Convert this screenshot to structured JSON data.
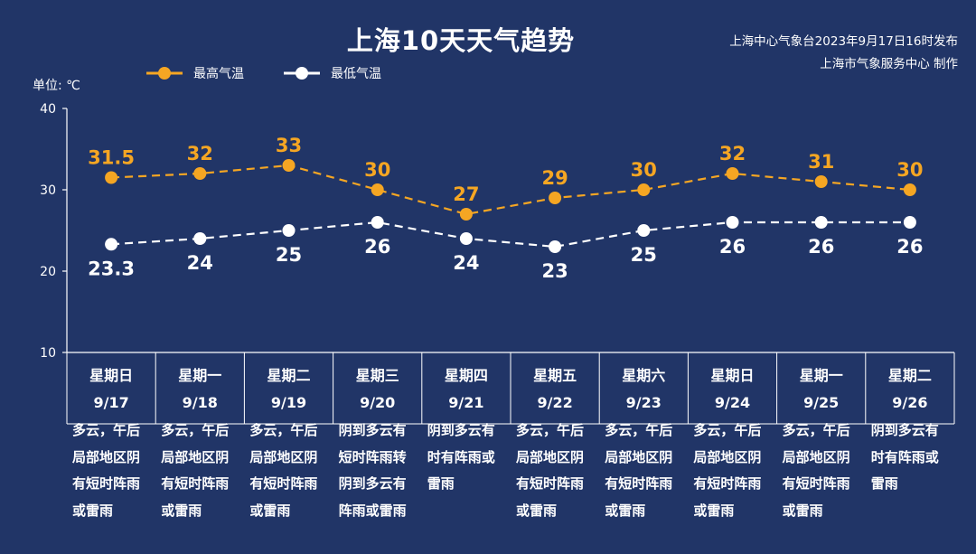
{
  "header": {
    "title": "上海10天天气趋势",
    "issuer_line1": "上海中心气象台2023年9月17日16时发布",
    "issuer_line2": "上海市气象服务中心 制作"
  },
  "legend": [
    {
      "label": "最高气温",
      "color": "#f5a623"
    },
    {
      "label": "最低气温",
      "color": "#ffffff"
    }
  ],
  "unit_label": "单位: ℃",
  "chart_data": {
    "type": "line",
    "ylim": [
      10,
      40
    ],
    "yticks": [
      10,
      20,
      30,
      40
    ],
    "series": [
      {
        "name": "最高气温",
        "color": "#f5a623",
        "values": [
          31.5,
          32,
          33,
          30,
          27,
          29,
          30,
          32,
          31,
          30
        ],
        "labels": [
          "31.5",
          "32",
          "33",
          "30",
          "27",
          "29",
          "30",
          "32",
          "31",
          "30"
        ]
      },
      {
        "name": "最低气温",
        "color": "#ffffff",
        "values": [
          23.3,
          24,
          25,
          26,
          24,
          23,
          25,
          26,
          26,
          26
        ],
        "labels": [
          "23.3",
          "24",
          "25",
          "26",
          "24",
          "23",
          "25",
          "26",
          "26",
          "26"
        ]
      }
    ],
    "days": [
      {
        "weekday": "星期日",
        "date": "9/17",
        "weather": [
          "多云，午后",
          "局部地区阴",
          "有短时阵雨",
          "或雷雨"
        ]
      },
      {
        "weekday": "星期一",
        "date": "9/18",
        "weather": [
          "多云，午后",
          "局部地区阴",
          "有短时阵雨",
          "或雷雨"
        ]
      },
      {
        "weekday": "星期二",
        "date": "9/19",
        "weather": [
          "多云，午后",
          "局部地区阴",
          "有短时阵雨",
          "或雷雨"
        ]
      },
      {
        "weekday": "星期三",
        "date": "9/20",
        "weather": [
          "阴到多云有",
          "短时阵雨转",
          "阴到多云有",
          "阵雨或雷雨"
        ]
      },
      {
        "weekday": "星期四",
        "date": "9/21",
        "weather": [
          "阴到多云有",
          "时有阵雨或",
          "雷雨"
        ]
      },
      {
        "weekday": "星期五",
        "date": "9/22",
        "weather": [
          "多云，午后",
          "局部地区阴",
          "有短时阵雨",
          "或雷雨"
        ]
      },
      {
        "weekday": "星期六",
        "date": "9/23",
        "weather": [
          "多云，午后",
          "局部地区阴",
          "有短时阵雨",
          "或雷雨"
        ]
      },
      {
        "weekday": "星期日",
        "date": "9/24",
        "weather": [
          "多云，午后",
          "局部地区阴",
          "有短时阵雨",
          "或雷雨"
        ]
      },
      {
        "weekday": "星期一",
        "date": "9/25",
        "weather": [
          "多云，午后",
          "局部地区阴",
          "有短时阵雨",
          "或雷雨"
        ]
      },
      {
        "weekday": "星期二",
        "date": "9/26",
        "weather": [
          "阴到多云有",
          "时有阵雨或",
          "雷雨"
        ]
      }
    ]
  }
}
